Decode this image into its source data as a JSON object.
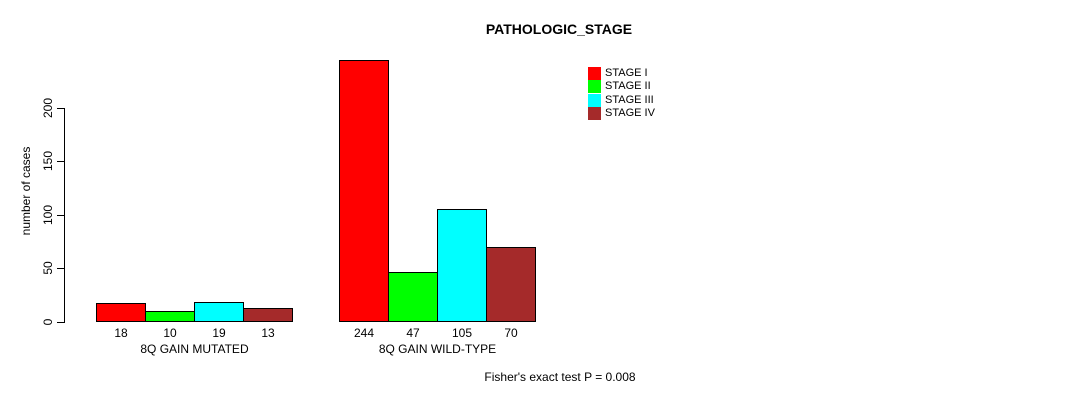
{
  "chart_data": {
    "type": "bar",
    "title": "PATHOLOGIC_STAGE",
    "ylabel": "number of cases",
    "xlabel": "",
    "categories": [
      "8Q GAIN MUTATED",
      "8Q GAIN WILD-TYPE"
    ],
    "series": [
      {
        "name": "STAGE I",
        "color": "#FF0000",
        "values": [
          18,
          244
        ]
      },
      {
        "name": "STAGE II",
        "color": "#00FF00",
        "values": [
          10,
          47
        ]
      },
      {
        "name": "STAGE III",
        "color": "#00FFFF",
        "values": [
          19,
          105
        ]
      },
      {
        "name": "STAGE IV",
        "color": "#A52A2A",
        "values": [
          13,
          70
        ]
      }
    ],
    "yticks": [
      0,
      50,
      100,
      150,
      200
    ],
    "ylim": [
      0,
      200
    ],
    "grid": false,
    "legend_position": "top-right",
    "legend_entries": [
      "STAGE I",
      "STAGE II",
      "STAGE III",
      "STAGE IV"
    ],
    "bar_value_labels": [
      [
        18,
        10,
        19,
        13
      ],
      [
        244,
        47,
        105,
        70
      ]
    ],
    "annotation": "Fisher's exact test P = 0.008"
  },
  "colors": {
    "stage_i": "#FF0000",
    "stage_ii": "#00FF00",
    "stage_iii": "#00FFFF",
    "stage_iv": "#A52A2A",
    "axis": "#000000",
    "background": "#FFFFFF"
  }
}
